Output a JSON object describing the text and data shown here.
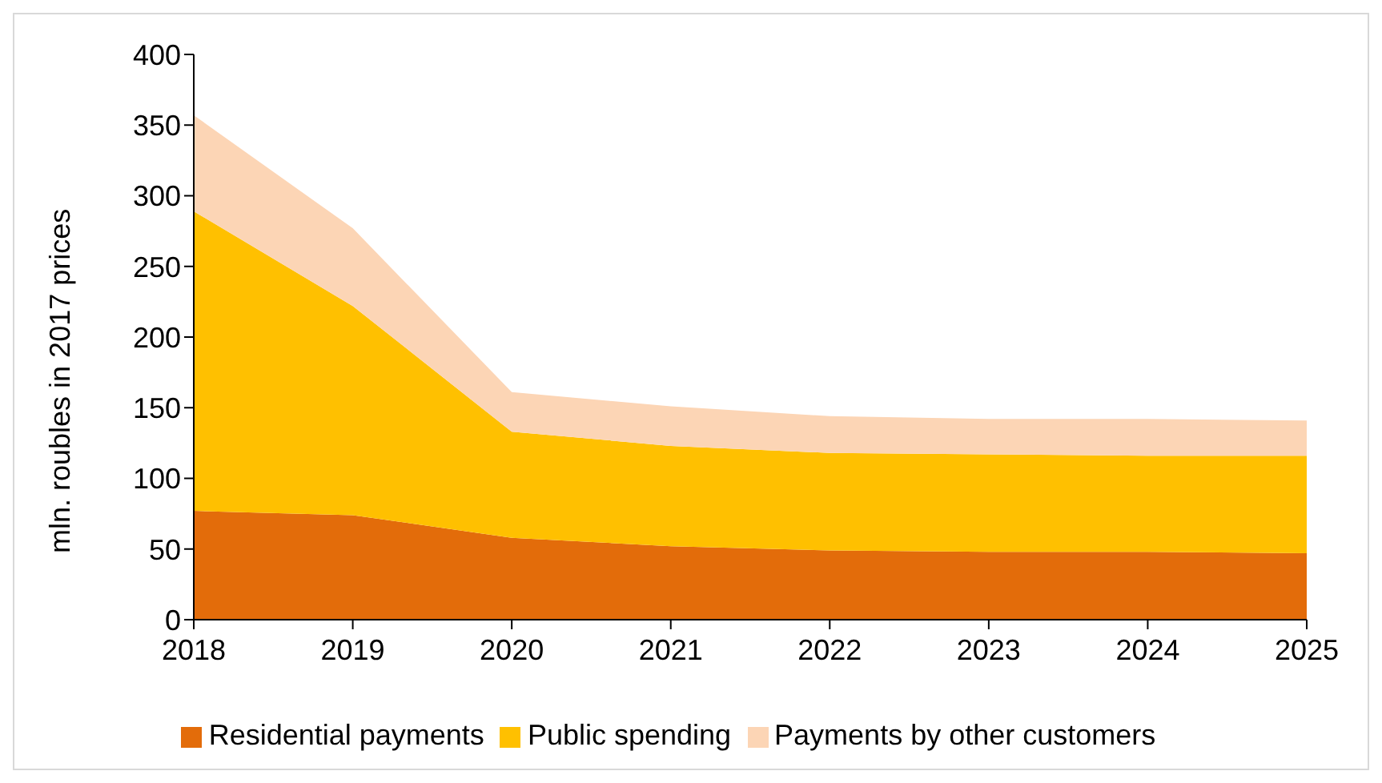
{
  "chart_data": {
    "type": "area",
    "stacked": true,
    "ylabel": "mln. roubles in 2017 prices",
    "x": [
      2018,
      2019,
      2020,
      2021,
      2022,
      2023,
      2024,
      2025
    ],
    "xlim": [
      2018,
      2025
    ],
    "xticks": [
      2018,
      2019,
      2020,
      2021,
      2022,
      2023,
      2024,
      2025
    ],
    "ylim": [
      0,
      400
    ],
    "yticks": [
      0,
      50,
      100,
      150,
      200,
      250,
      300,
      350,
      400
    ],
    "grid": false,
    "legend": "bottom",
    "series": [
      {
        "name": "Residential payments",
        "color": "#e36c0a",
        "values": [
          77,
          74,
          58,
          52,
          49,
          48,
          48,
          47
        ]
      },
      {
        "name": "Public spending",
        "color": "#ffc000",
        "values": [
          212,
          148,
          75,
          71,
          69,
          69,
          68,
          69
        ]
      },
      {
        "name": "Payments by other customers",
        "color": "#fcd5b5",
        "values": [
          68,
          55,
          28,
          28,
          26,
          25,
          26,
          25
        ]
      }
    ]
  }
}
